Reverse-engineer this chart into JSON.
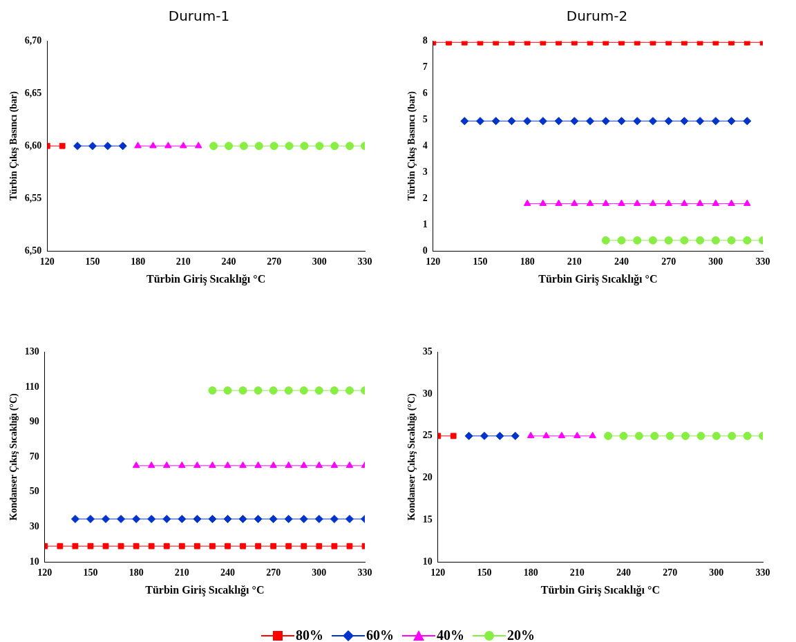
{
  "chart_data": [
    {
      "type": "line",
      "title": "Durum-1",
      "xlabel": "Türbin Giriş Sıcaklığı °C",
      "ylabel": "Türbin Çıkış Basıncı (bar)",
      "xlim": [
        120,
        330
      ],
      "xticks": [
        120,
        150,
        180,
        210,
        240,
        270,
        300,
        330
      ],
      "ylim": [
        6.5,
        6.7
      ],
      "yticks": [
        {
          "value": 6.5,
          "label": "6,50"
        },
        {
          "value": 6.55,
          "label": "6,55"
        },
        {
          "value": 6.6,
          "label": "6,60"
        },
        {
          "value": 6.65,
          "label": "6,65"
        },
        {
          "value": 6.7,
          "label": "6,70"
        }
      ],
      "grid": false,
      "legend": "bottom",
      "series": [
        {
          "name": "80%",
          "color": "#ff0000",
          "marker": "square",
          "x": [
            120,
            130
          ],
          "values": [
            6.6,
            6.6
          ]
        },
        {
          "name": "60%",
          "color": "#0033cc",
          "marker": "diamond",
          "x": [
            140,
            150,
            160,
            170
          ],
          "values": [
            6.6,
            6.6,
            6.6,
            6.6
          ]
        },
        {
          "name": "40%",
          "color": "#ff00ff",
          "marker": "triangle",
          "x": [
            180,
            190,
            200,
            210,
            220
          ],
          "values": [
            6.6,
            6.6,
            6.6,
            6.6,
            6.6
          ]
        },
        {
          "name": "20%",
          "color": "#88ee44",
          "marker": "circle",
          "x": [
            230,
            240,
            250,
            260,
            270,
            280,
            290,
            300,
            310,
            320,
            330
          ],
          "values": [
            6.6,
            6.6,
            6.6,
            6.6,
            6.6,
            6.6,
            6.6,
            6.6,
            6.6,
            6.6,
            6.6
          ]
        }
      ]
    },
    {
      "type": "line",
      "title": "Durum-2",
      "xlabel": "Türbin Giriş Sıcaklığı °C",
      "ylabel": "Türbin Çıkış Basıncı (bar)",
      "xlim": [
        120,
        330
      ],
      "xticks": [
        120,
        150,
        180,
        210,
        240,
        270,
        300,
        330
      ],
      "ylim": [
        0,
        8
      ],
      "yticks": [
        0,
        1,
        2,
        3,
        4,
        5,
        6,
        7,
        8
      ],
      "grid": false,
      "series": [
        {
          "color": "#ff0000",
          "marker": "square",
          "x": [
            120,
            130,
            140,
            150,
            160,
            170,
            180,
            190,
            200,
            210,
            220,
            230,
            240,
            250,
            260,
            270,
            280,
            290,
            300,
            310,
            320,
            330
          ],
          "values": [
            7.95,
            7.95,
            7.95,
            7.95,
            7.95,
            7.95,
            7.95,
            7.95,
            7.95,
            7.95,
            7.95,
            7.95,
            7.95,
            7.95,
            7.95,
            7.95,
            7.95,
            7.95,
            7.95,
            7.95,
            7.95,
            7.95
          ]
        },
        {
          "color": "#0033cc",
          "marker": "diamond",
          "x": [
            140,
            150,
            160,
            170,
            180,
            190,
            200,
            210,
            220,
            230,
            240,
            250,
            260,
            270,
            280,
            290,
            300,
            310,
            320
          ],
          "values": [
            4.95,
            4.95,
            4.95,
            4.95,
            4.95,
            4.95,
            4.95,
            4.95,
            4.95,
            4.95,
            4.95,
            4.95,
            4.95,
            4.95,
            4.95,
            4.95,
            4.95,
            4.95,
            4.95
          ]
        },
        {
          "color": "#ff00ff",
          "marker": "triangle",
          "x": [
            180,
            190,
            200,
            210,
            220,
            230,
            240,
            250,
            260,
            270,
            280,
            290,
            300,
            310,
            320
          ],
          "values": [
            1.8,
            1.8,
            1.8,
            1.8,
            1.8,
            1.8,
            1.8,
            1.8,
            1.8,
            1.8,
            1.8,
            1.8,
            1.8,
            1.8,
            1.8
          ]
        },
        {
          "color": "#88ee44",
          "marker": "circle",
          "x": [
            230,
            240,
            250,
            260,
            270,
            280,
            290,
            300,
            310,
            320,
            330
          ],
          "values": [
            0.4,
            0.4,
            0.4,
            0.4,
            0.4,
            0.4,
            0.4,
            0.4,
            0.4,
            0.4,
            0.4
          ]
        }
      ]
    },
    {
      "type": "line",
      "xlabel": "Türbin Giriş Sıcaklığı °C",
      "ylabel": "Kondanser Çıkış Sıcaklığı (°C)",
      "xlim": [
        120,
        330
      ],
      "xticks": [
        120,
        150,
        180,
        210,
        240,
        270,
        300,
        330
      ],
      "ylim": [
        10,
        130
      ],
      "yticks": [
        10,
        30,
        50,
        70,
        90,
        110,
        130
      ],
      "grid": false,
      "series": [
        {
          "color": "#ff0000",
          "marker": "square",
          "x": [
            120,
            130,
            140,
            150,
            160,
            170,
            180,
            190,
            200,
            210,
            220,
            230,
            240,
            250,
            260,
            270,
            280,
            290,
            300,
            310,
            320,
            330
          ],
          "values": [
            19,
            19,
            19,
            19,
            19,
            19,
            19,
            19,
            19,
            19,
            19,
            19,
            19,
            19,
            19,
            19,
            19,
            19,
            19,
            19,
            19,
            19
          ]
        },
        {
          "color": "#0033cc",
          "marker": "diamond",
          "x": [
            140,
            150,
            160,
            170,
            180,
            190,
            200,
            210,
            220,
            230,
            240,
            250,
            260,
            270,
            280,
            290,
            300,
            310,
            320,
            330
          ],
          "values": [
            34.5,
            34.5,
            34.5,
            34.5,
            34.5,
            34.5,
            34.5,
            34.5,
            34.5,
            34.5,
            34.5,
            34.5,
            34.5,
            34.5,
            34.5,
            34.5,
            34.5,
            34.5,
            34.5,
            34.5
          ]
        },
        {
          "color": "#ff00ff",
          "marker": "triangle",
          "x": [
            180,
            190,
            200,
            210,
            220,
            230,
            240,
            250,
            260,
            270,
            280,
            290,
            300,
            310,
            320,
            330
          ],
          "values": [
            65,
            65,
            65,
            65,
            65,
            65,
            65,
            65,
            65,
            65,
            65,
            65,
            65,
            65,
            65,
            65
          ]
        },
        {
          "color": "#88ee44",
          "marker": "circle",
          "x": [
            230,
            240,
            250,
            260,
            270,
            280,
            290,
            300,
            310,
            320,
            330
          ],
          "values": [
            108,
            108,
            108,
            108,
            108,
            108,
            108,
            108,
            108,
            108,
            108
          ]
        }
      ]
    },
    {
      "type": "line",
      "xlabel": "Türbin Giriş Sıcaklığı °C",
      "ylabel": "Kondanser Çıkış Sıcaklığı (°C)",
      "xlim": [
        120,
        330
      ],
      "xticks": [
        120,
        150,
        180,
        210,
        240,
        270,
        300,
        330
      ],
      "ylim": [
        10,
        35
      ],
      "yticks": [
        10,
        15,
        20,
        25,
        30,
        35
      ],
      "grid": false,
      "series": [
        {
          "color": "#ff0000",
          "marker": "square",
          "x": [
            120,
            130
          ],
          "values": [
            25,
            25
          ]
        },
        {
          "color": "#0033cc",
          "marker": "diamond",
          "x": [
            140,
            150,
            160,
            170
          ],
          "values": [
            25,
            25,
            25,
            25
          ]
        },
        {
          "color": "#ff00ff",
          "marker": "triangle",
          "x": [
            180,
            190,
            200,
            210,
            220
          ],
          "values": [
            25,
            25,
            25,
            25,
            25
          ]
        },
        {
          "color": "#88ee44",
          "marker": "circle",
          "x": [
            230,
            240,
            250,
            260,
            270,
            280,
            290,
            300,
            310,
            320,
            330
          ],
          "values": [
            25,
            25,
            25,
            25,
            25,
            25,
            25,
            25,
            25,
            25,
            25
          ]
        }
      ]
    }
  ]
}
